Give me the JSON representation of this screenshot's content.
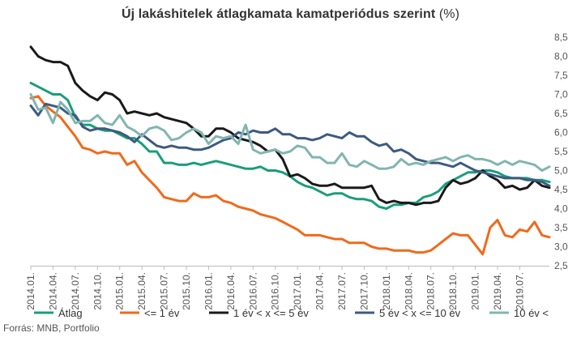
{
  "chart_data": {
    "type": "line",
    "title": "Új lakáshitelek átlagkamata kamatperiódus szerint",
    "title_unit": "(%)",
    "source": "Forrás: MNB, Portfolio",
    "ylim": [
      2.5,
      8.5
    ],
    "y_ticks": [
      "2,5",
      "3,0",
      "3,5",
      "4,0",
      "4,5",
      "5,0",
      "5,5",
      "6,0",
      "6,5",
      "7,0",
      "7,5",
      "8,0",
      "8,5"
    ],
    "y_axis_position": "right",
    "grid": false,
    "legend_position": "bottom",
    "x_start": "2014.01.",
    "x_tick_labels": [
      "2014.01.",
      "2014.04.",
      "2014.07.",
      "2014.10.",
      "2015.01.",
      "2015.04.",
      "2015.07.",
      "2015.10.",
      "2016.01.",
      "2016.04.",
      "2016.07.",
      "2016.10.",
      "2017.01.",
      "2017.04.",
      "2017.07.",
      "2017.10.",
      "2018.01.",
      "2018.04.",
      "2018.07.",
      "2018.10.",
      "2019.01.",
      "2019.04.",
      "2019.07."
    ],
    "series": [
      {
        "name": "Átlag",
        "color": "#1a9e7a",
        "values": [
          7.3,
          7.2,
          7.1,
          7.0,
          7.0,
          6.85,
          6.4,
          6.2,
          6.2,
          6.1,
          6.05,
          6.05,
          5.95,
          5.85,
          5.85,
          5.7,
          5.5,
          5.5,
          5.2,
          5.2,
          5.15,
          5.15,
          5.2,
          5.15,
          5.2,
          5.25,
          5.2,
          5.15,
          5.1,
          5.05,
          5.05,
          5.1,
          5.0,
          5.0,
          4.95,
          4.85,
          4.7,
          4.6,
          4.55,
          4.45,
          4.35,
          4.4,
          4.4,
          4.3,
          4.25,
          4.25,
          4.2,
          4.05,
          4.0,
          4.1,
          4.1,
          4.15,
          4.15,
          4.3,
          4.35,
          4.45,
          4.65,
          4.75,
          4.85,
          4.95,
          4.95,
          5.0,
          5.0,
          4.95,
          4.85,
          4.8,
          4.8,
          4.8,
          4.75,
          4.75,
          4.7
        ]
      },
      {
        "name": "<= 1 év",
        "color": "#f06a1b",
        "values": [
          6.9,
          6.95,
          6.7,
          6.55,
          6.4,
          6.15,
          5.9,
          5.6,
          5.55,
          5.45,
          5.5,
          5.45,
          5.45,
          5.15,
          5.25,
          4.95,
          4.75,
          4.55,
          4.3,
          4.25,
          4.2,
          4.2,
          4.4,
          4.3,
          4.3,
          4.35,
          4.2,
          4.15,
          4.05,
          4.0,
          3.95,
          3.85,
          3.8,
          3.75,
          3.65,
          3.55,
          3.45,
          3.3,
          3.3,
          3.3,
          3.25,
          3.2,
          3.2,
          3.1,
          3.1,
          3.1,
          3.0,
          2.95,
          2.95,
          2.9,
          2.9,
          2.9,
          2.85,
          2.85,
          2.9,
          3.05,
          3.2,
          3.35,
          3.3,
          3.3,
          3.05,
          2.8,
          3.5,
          3.7,
          3.3,
          3.25,
          3.45,
          3.4,
          3.65,
          3.3,
          3.25
        ]
      },
      {
        "name": "1 év < x <= 5 év",
        "color": "#1a1a1a",
        "values": [
          8.25,
          8.0,
          7.9,
          7.85,
          7.85,
          7.75,
          7.3,
          7.1,
          6.95,
          6.85,
          7.05,
          7.0,
          6.85,
          6.5,
          6.55,
          6.5,
          6.45,
          6.5,
          6.4,
          6.35,
          6.3,
          6.25,
          6.1,
          5.9,
          5.9,
          6.1,
          6.1,
          6.0,
          5.85,
          5.8,
          5.75,
          5.65,
          5.5,
          5.55,
          5.3,
          4.85,
          4.9,
          4.8,
          4.65,
          4.6,
          4.6,
          4.65,
          4.55,
          4.55,
          4.55,
          4.55,
          4.6,
          4.25,
          4.15,
          4.2,
          4.15,
          4.15,
          4.1,
          4.15,
          4.15,
          4.2,
          4.55,
          4.75,
          4.65,
          4.7,
          4.8,
          5.0,
          4.85,
          4.75,
          4.55,
          4.6,
          4.5,
          4.55,
          4.75,
          4.6,
          4.55
        ]
      },
      {
        "name": "5 év  < x <=  10 év",
        "color": "#3d5a80",
        "values": [
          6.7,
          6.45,
          6.75,
          6.7,
          6.65,
          6.5,
          6.45,
          6.15,
          6.05,
          6.1,
          6.1,
          6.05,
          6.0,
          5.9,
          5.75,
          5.95,
          5.8,
          5.65,
          5.6,
          5.65,
          5.6,
          5.6,
          5.55,
          5.55,
          5.6,
          5.7,
          5.8,
          5.85,
          6.0,
          5.95,
          6.05,
          6.0,
          6.0,
          6.1,
          5.95,
          5.95,
          5.85,
          5.85,
          5.8,
          5.85,
          5.95,
          5.9,
          5.85,
          6.0,
          5.9,
          5.9,
          5.75,
          5.65,
          5.7,
          5.5,
          5.55,
          5.45,
          5.3,
          5.25,
          5.2,
          5.2,
          5.15,
          5.1,
          5.2,
          5.1,
          5.0,
          4.95,
          4.9,
          4.85,
          4.8,
          4.8,
          4.8,
          4.75,
          4.75,
          4.7,
          4.6
        ]
      },
      {
        "name": "10 év <",
        "color": "#82b5b0",
        "values": [
          7.0,
          6.6,
          6.65,
          6.25,
          6.8,
          6.6,
          6.25,
          6.3,
          6.3,
          6.45,
          6.25,
          6.2,
          6.45,
          6.15,
          6.05,
          5.9,
          6.1,
          6.15,
          6.05,
          5.8,
          5.85,
          6.0,
          6.1,
          6.0,
          5.7,
          5.9,
          5.85,
          5.9,
          5.7,
          6.2,
          5.55,
          5.45,
          5.5,
          5.55,
          5.45,
          5.5,
          5.65,
          5.6,
          5.35,
          5.35,
          5.2,
          5.2,
          5.45,
          5.15,
          5.1,
          5.25,
          5.15,
          5.05,
          5.05,
          5.1,
          5.3,
          5.15,
          5.2,
          5.15,
          5.25,
          5.3,
          5.35,
          5.25,
          5.35,
          5.4,
          5.3,
          5.3,
          5.25,
          5.15,
          5.25,
          5.15,
          5.25,
          5.2,
          5.15,
          5.0,
          5.1
        ]
      }
    ]
  }
}
